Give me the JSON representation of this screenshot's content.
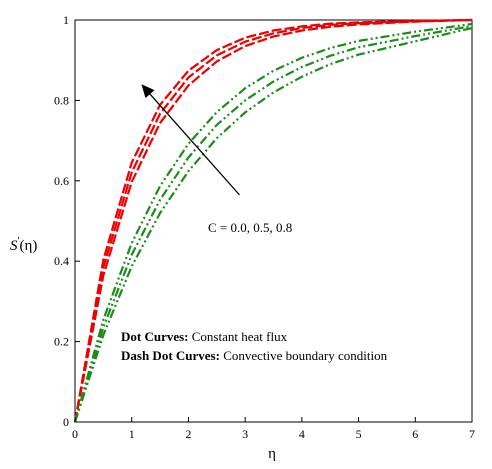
{
  "chart_data": {
    "type": "line",
    "xlabel": "η",
    "ylabel_main": "S",
    "ylabel_prime": "'",
    "ylabel_arg": "(η)",
    "xlim": [
      0,
      7
    ],
    "ylim": [
      0,
      1
    ],
    "xticks": [
      "0",
      "1",
      "2",
      "3",
      "4",
      "5",
      "6",
      "7"
    ],
    "yticks": [
      "0",
      "0.2",
      "0.4",
      "0.6",
      "0.8",
      "1"
    ],
    "grid": false,
    "legend": {
      "line1_bold": "Dot Curves:",
      "line1_text": " Constant heat flux",
      "line2_bold": "Dash Dot Curves:",
      "line2_text": " Convective boundary condition"
    },
    "annotation": "C = 0.0, 0.5, 0.8",
    "colors": {
      "red": "#ee0000",
      "green": "#1a8c1a"
    },
    "series": [
      {
        "group": "red",
        "dash": "dot",
        "x": [
          0,
          0.5,
          1,
          1.5,
          2,
          2.5,
          3,
          3.5,
          4,
          4.5,
          5,
          6,
          7
        ],
        "y": [
          0,
          0.404,
          0.645,
          0.789,
          0.874,
          0.925,
          0.956,
          0.974,
          0.984,
          0.991,
          0.994,
          0.998,
          1.0
        ]
      },
      {
        "group": "red",
        "dash": "dot",
        "x": [
          0,
          0.5,
          1,
          1.5,
          2,
          2.5,
          3,
          3.5,
          4,
          4.5,
          5,
          6,
          7
        ],
        "y": [
          0,
          0.385,
          0.621,
          0.767,
          0.857,
          0.912,
          0.946,
          0.967,
          0.98,
          0.988,
          0.992,
          0.997,
          1.0
        ]
      },
      {
        "group": "red",
        "dash": "dot",
        "x": [
          0,
          0.5,
          1,
          1.5,
          2,
          2.5,
          3,
          3.5,
          4,
          4.5,
          5,
          6,
          7
        ],
        "y": [
          0,
          0.365,
          0.597,
          0.744,
          0.837,
          0.897,
          0.935,
          0.959,
          0.974,
          0.983,
          0.989,
          0.996,
          1.0
        ]
      },
      {
        "group": "green",
        "dash": "dashdot",
        "x": [
          0,
          0.5,
          1,
          1.5,
          2,
          2.5,
          3,
          3.5,
          4,
          4.5,
          5,
          6,
          7
        ],
        "y": [
          0,
          0.255,
          0.445,
          0.587,
          0.692,
          0.771,
          0.83,
          0.874,
          0.906,
          0.93,
          0.948,
          0.971,
          0.99
        ]
      },
      {
        "group": "green",
        "dash": "dashdot",
        "x": [
          0,
          0.5,
          1,
          1.5,
          2,
          2.5,
          3,
          3.5,
          4,
          4.5,
          5,
          6,
          7
        ],
        "y": [
          0,
          0.236,
          0.416,
          0.553,
          0.658,
          0.739,
          0.8,
          0.847,
          0.883,
          0.911,
          0.932,
          0.96,
          0.985
        ]
      },
      {
        "group": "green",
        "dash": "dashdot",
        "x": [
          0,
          0.5,
          1,
          1.5,
          2,
          2.5,
          3,
          3.5,
          4,
          4.5,
          5,
          6,
          7
        ],
        "y": [
          0,
          0.217,
          0.387,
          0.52,
          0.624,
          0.706,
          0.77,
          0.82,
          0.859,
          0.89,
          0.914,
          0.947,
          0.98
        ]
      }
    ],
    "arrow": {
      "from": {
        "x": 2.9,
        "y": 0.565
      },
      "to": {
        "x": 1.17,
        "y": 0.84
      }
    }
  }
}
